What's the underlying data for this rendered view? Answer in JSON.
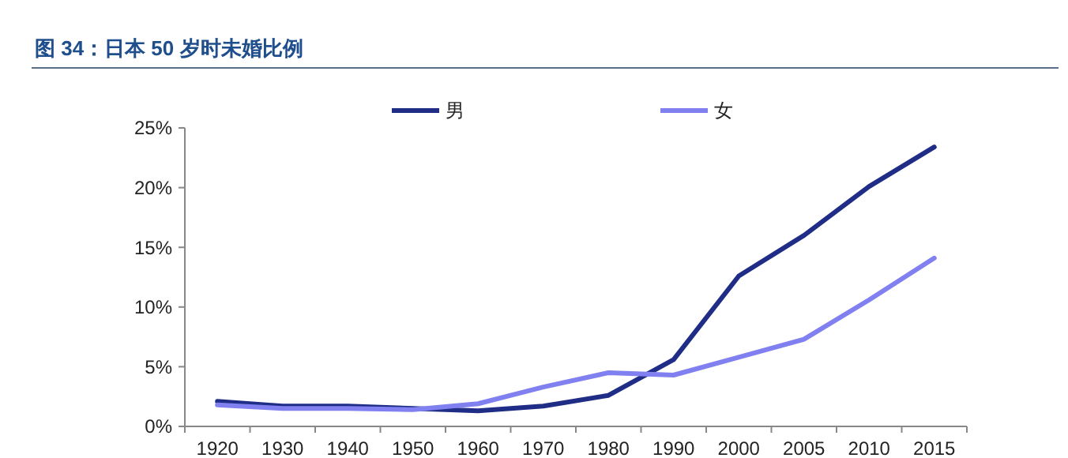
{
  "chart_data": {
    "type": "line",
    "title": "图 34：日本 50 岁时未婚比例",
    "categories": [
      "1920",
      "1930",
      "1940",
      "1950",
      "1960",
      "1970",
      "1980",
      "1990",
      "2000",
      "2005",
      "2010",
      "2015"
    ],
    "series": [
      {
        "name": "男",
        "color": "#1f2d86",
        "values": [
          2.1,
          1.7,
          1.7,
          1.5,
          1.3,
          1.7,
          2.6,
          5.6,
          12.6,
          16.0,
          20.1,
          23.4
        ]
      },
      {
        "name": "女",
        "color": "#8080f0",
        "values": [
          1.8,
          1.5,
          1.5,
          1.4,
          1.9,
          3.3,
          4.5,
          4.3,
          5.8,
          7.3,
          10.6,
          14.1
        ]
      }
    ],
    "ylim": [
      0,
      25
    ],
    "yticks": [
      {
        "value": 0,
        "label": "0%"
      },
      {
        "value": 5,
        "label": "5%"
      },
      {
        "value": 10,
        "label": "10%"
      },
      {
        "value": 15,
        "label": "15%"
      },
      {
        "value": 20,
        "label": "20%"
      },
      {
        "value": 25,
        "label": "25%"
      }
    ],
    "grid": false,
    "legend": "top",
    "line_style": "solid"
  }
}
